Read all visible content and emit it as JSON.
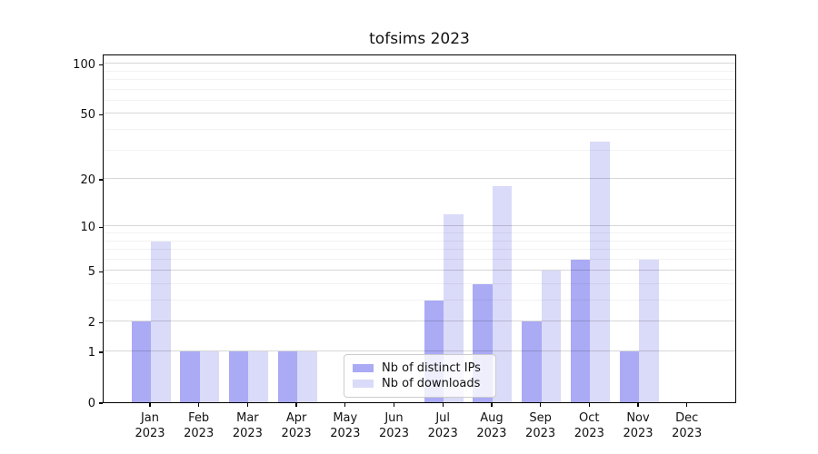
{
  "title": "tofsims 2023",
  "chart_data": {
    "type": "bar",
    "title": "tofsims 2023",
    "scale": "log10(1+y)",
    "categories": [
      "Jan",
      "Feb",
      "Mar",
      "Apr",
      "May",
      "Jun",
      "Jul",
      "Aug",
      "Sep",
      "Oct",
      "Nov",
      "Dec"
    ],
    "year": "2023",
    "series": [
      {
        "name": "Nb of distinct IPs",
        "color": "#aaaaf5",
        "values": [
          2,
          1,
          1,
          1,
          0,
          0,
          3,
          4,
          2,
          6,
          1,
          0
        ]
      },
      {
        "name": "Nb of downloads",
        "color": "#dadaf9",
        "values": [
          8,
          1,
          1,
          1,
          0,
          0,
          12,
          18,
          5,
          34,
          6,
          0
        ]
      }
    ],
    "yticks": [
      0,
      1,
      2,
      5,
      10,
      20,
      50,
      100
    ],
    "minor_gridlines": [
      3,
      4,
      6,
      7,
      8,
      9,
      30,
      40,
      60,
      70,
      80,
      90
    ],
    "ylim": [
      0,
      114
    ],
    "xlabel": "",
    "ylabel": "",
    "grid": "horizontal",
    "legend_position": "bottom-center-inside"
  },
  "colors": {
    "distinct_ips": "#aaaaf5",
    "downloads": "#dadaf9",
    "spine": "#000000",
    "grid_major": "#d6d6d6",
    "grid_minor": "#f0f0f0",
    "background": "#ffffff"
  }
}
